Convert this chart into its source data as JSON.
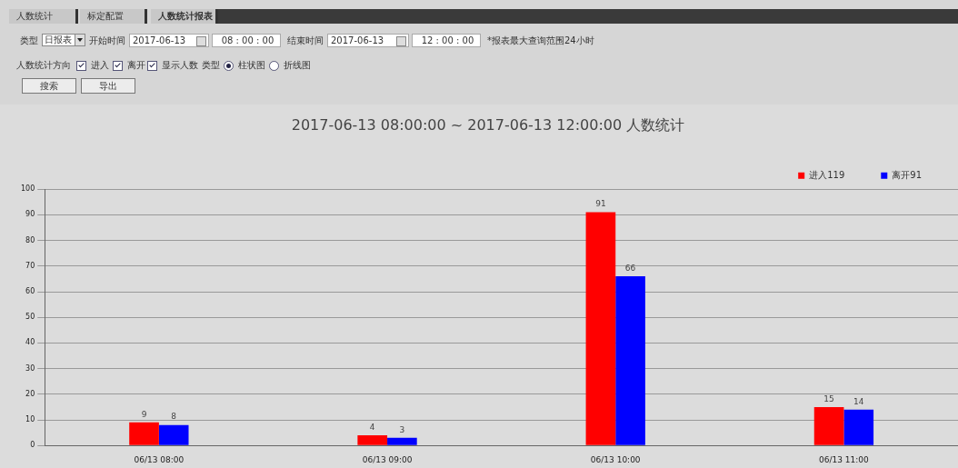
{
  "chart_data": {
    "type": "bar",
    "title": "2017-06-13 08:00:00 ~ 2017-06-13 12:00:00 人数统计",
    "categories": [
      "06/13 08:00",
      "06/13 09:00",
      "06/13 10:00",
      "06/13 11:00"
    ],
    "series": [
      {
        "name": "进入119",
        "color": "#ff0000",
        "values": [
          9,
          4,
          91,
          15
        ]
      },
      {
        "name": "离开91",
        "color": "#0000ff",
        "values": [
          8,
          3,
          66,
          14
        ]
      }
    ],
    "ylim": [
      0,
      100
    ],
    "yticks": [
      0,
      10,
      20,
      30,
      40,
      50,
      60,
      70,
      80,
      90,
      100
    ],
    "grid": "y",
    "legend": "top right",
    "data_labels": true,
    "annotations": [
      "人数统计",
      "标定配置",
      "人数统计报表",
      "类型",
      "日报表",
      "开始时间",
      "2017-06-13",
      "08 : 00 : 00",
      "结束时间",
      "2017-06-13",
      "12 : 00 : 00",
      "*报表最大查询范围24小时",
      "人数统计方向",
      "进入",
      "离开",
      "显示人数",
      "类型",
      "柱状图",
      "折线图",
      "搜索",
      "导出"
    ]
  }
}
